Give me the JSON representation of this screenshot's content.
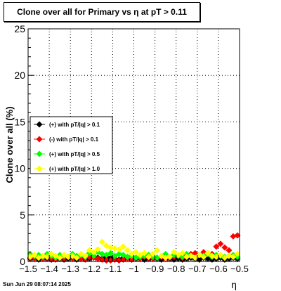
{
  "window": {
    "timestamp": "Sun Jun 29 08:07:14 2025"
  },
  "chart_data": {
    "type": "scatter",
    "title": "Clone  over all for Primary vs    η  at pT > 0.11",
    "xlabel": "η",
    "ylabel": "Clone  over all (%)",
    "xlim": [
      -1.5,
      -0.5
    ],
    "ylim": [
      0,
      25
    ],
    "x_ticks": [
      -1.5,
      -1.4,
      -1.3,
      -1.2,
      -1.1,
      -1,
      -0.9,
      -0.8,
      -0.7,
      -0.6,
      -0.5
    ],
    "x_tick_labels": [
      "−1.5",
      "−1.4",
      "−1.3",
      "−1.2",
      "−1.1",
      "−1",
      "−0.9",
      "−0.8",
      "−0.7",
      "−0.6",
      "−0.5"
    ],
    "y_ticks": [
      0,
      5,
      10,
      15,
      20,
      25
    ],
    "y_tick_labels": [
      "0",
      "5",
      "10",
      "15",
      "20",
      "25"
    ],
    "grid": true,
    "legend_position": "middle-left",
    "series": [
      {
        "name": "(+) with pT/|q| > 0.1",
        "color": "#000000",
        "x": [
          -1.49,
          -1.47,
          -1.45,
          -1.43,
          -1.41,
          -1.39,
          -1.37,
          -1.35,
          -1.33,
          -1.31,
          -1.29,
          -1.27,
          -1.25,
          -1.23,
          -1.21,
          -1.19,
          -1.17,
          -1.15,
          -1.13,
          -1.11,
          -1.09,
          -1.07,
          -1.05,
          -1.03,
          -1.01,
          -0.99,
          -0.97,
          -0.95,
          -0.93,
          -0.91,
          -0.89,
          -0.87,
          -0.85,
          -0.83,
          -0.81,
          -0.79,
          -0.77,
          -0.75,
          -0.73,
          -0.71,
          -0.69,
          -0.67,
          -0.65,
          -0.63,
          -0.61,
          -0.59,
          -0.57,
          -0.55,
          -0.53,
          -0.51
        ],
        "y": [
          0.3,
          0.5,
          0.2,
          0.4,
          0.3,
          0.2,
          0.4,
          0.3,
          0.2,
          0.3,
          0.4,
          0.2,
          0.3,
          0.5,
          0.3,
          0.6,
          0.4,
          0.3,
          0.5,
          0.4,
          0.3,
          0.2,
          0.4,
          0.3,
          0.2,
          0.3,
          0.4,
          0.2,
          0.3,
          0.5,
          0.3,
          0.2,
          0.4,
          0.3,
          0.2,
          0.3,
          0.2,
          0.3,
          0.4,
          0.3,
          0.2,
          0.4,
          0.3,
          0.2,
          0.3,
          0.4,
          0.2,
          0.3,
          0.4,
          0.3
        ]
      },
      {
        "name": "(-) with pT/|q| > 0.1",
        "color": "#ff0000",
        "x": [
          -1.49,
          -1.47,
          -1.45,
          -1.43,
          -1.41,
          -1.39,
          -1.37,
          -1.35,
          -1.33,
          -1.31,
          -1.29,
          -1.27,
          -1.25,
          -1.23,
          -1.21,
          -1.19,
          -1.17,
          -1.15,
          -1.13,
          -1.11,
          -1.09,
          -1.07,
          -1.05,
          -1.03,
          -1.01,
          -0.99,
          -0.97,
          -0.95,
          -0.93,
          -0.91,
          -0.89,
          -0.87,
          -0.85,
          -0.83,
          -0.81,
          -0.79,
          -0.77,
          -0.75,
          -0.73,
          -0.71,
          -0.69,
          -0.67,
          -0.65,
          -0.63,
          -0.61,
          -0.59,
          -0.57,
          -0.55,
          -0.53,
          -0.51
        ],
        "y": [
          0.4,
          0.3,
          0.5,
          0.3,
          0.4,
          0.3,
          0.2,
          0.4,
          0.3,
          0.5,
          0.3,
          0.4,
          0.3,
          0.2,
          0.5,
          0.4,
          0.3,
          0.2,
          0.1,
          0.1,
          0.2,
          0.1,
          0.2,
          0.3,
          0.2,
          0.4,
          0.3,
          0.5,
          0.4,
          0.3,
          0.4,
          0.5,
          0.3,
          0.4,
          0.5,
          0.6,
          0.4,
          0.7,
          0.8,
          0.9,
          0.7,
          1.0,
          0.9,
          0.8,
          1.6,
          1.9,
          1.5,
          1.2,
          2.7,
          2.8
        ]
      },
      {
        "name": "(+) with pT/|q| > 0.5",
        "color": "#00ff00",
        "x": [
          -1.49,
          -1.47,
          -1.45,
          -1.43,
          -1.41,
          -1.39,
          -1.37,
          -1.35,
          -1.33,
          -1.31,
          -1.29,
          -1.27,
          -1.25,
          -1.23,
          -1.21,
          -1.19,
          -1.17,
          -1.15,
          -1.13,
          -1.11,
          -1.09,
          -1.07,
          -1.05,
          -1.03,
          -1.01,
          -0.99,
          -0.97,
          -0.95,
          -0.93,
          -0.91,
          -0.89,
          -0.87,
          -0.85,
          -0.83,
          -0.81,
          -0.79,
          -0.77,
          -0.75,
          -0.73,
          -0.71,
          -0.69,
          -0.67,
          -0.65,
          -0.63,
          -0.61,
          -0.59,
          -0.57,
          -0.55,
          -0.53,
          -0.51
        ],
        "y": [
          0.8,
          0.6,
          0.7,
          0.5,
          0.8,
          0.6,
          0.4,
          0.7,
          0.6,
          0.5,
          0.8,
          0.6,
          0.7,
          0.5,
          0.9,
          0.6,
          1.0,
          0.8,
          0.7,
          0.9,
          0.6,
          0.8,
          0.7,
          0.5,
          0.6,
          0.4,
          0.5,
          0.6,
          0.7,
          0.5,
          0.4,
          0.6,
          0.8,
          0.5,
          0.7,
          0.6,
          0.5,
          0.8,
          0.6,
          0.4,
          0.7,
          0.6,
          0.8,
          0.5,
          0.7,
          0.6,
          0.5,
          0.6,
          0.7,
          0.5
        ]
      },
      {
        "name": "(+) with pT/|q| > 1.0",
        "color": "#ffff00",
        "x": [
          -1.49,
          -1.47,
          -1.45,
          -1.43,
          -1.41,
          -1.39,
          -1.37,
          -1.35,
          -1.33,
          -1.31,
          -1.29,
          -1.27,
          -1.25,
          -1.23,
          -1.21,
          -1.19,
          -1.17,
          -1.15,
          -1.13,
          -1.11,
          -1.09,
          -1.07,
          -1.05,
          -1.03,
          -1.01,
          -0.99,
          -0.97,
          -0.95,
          -0.93,
          -0.91,
          -0.89,
          -0.87,
          -0.85,
          -0.83,
          -0.81,
          -0.79,
          -0.77,
          -0.75,
          -0.73,
          -0.71,
          -0.69,
          -0.67,
          -0.65,
          -0.63,
          -0.61,
          -0.59,
          -0.57,
          -0.55,
          -0.53,
          -0.51
        ],
        "y": [
          0.5,
          0.7,
          0.4,
          0.6,
          0.5,
          0.8,
          0.6,
          0.4,
          0.7,
          0.5,
          0.6,
          0.4,
          0.8,
          0.6,
          1.2,
          1.0,
          1.3,
          2.1,
          1.7,
          1.5,
          1.4,
          1.3,
          1.6,
          1.2,
          0.8,
          1.0,
          0.7,
          0.9,
          0.5,
          0.8,
          1.2,
          0.6,
          0.4,
          0.5,
          1.0,
          0.7,
          0.9,
          0.5,
          0.6,
          0.4,
          0.7,
          0.5,
          0.9,
          0.6,
          0.5,
          0.7,
          0.4,
          0.6,
          0.5,
          0.8
        ]
      }
    ]
  }
}
